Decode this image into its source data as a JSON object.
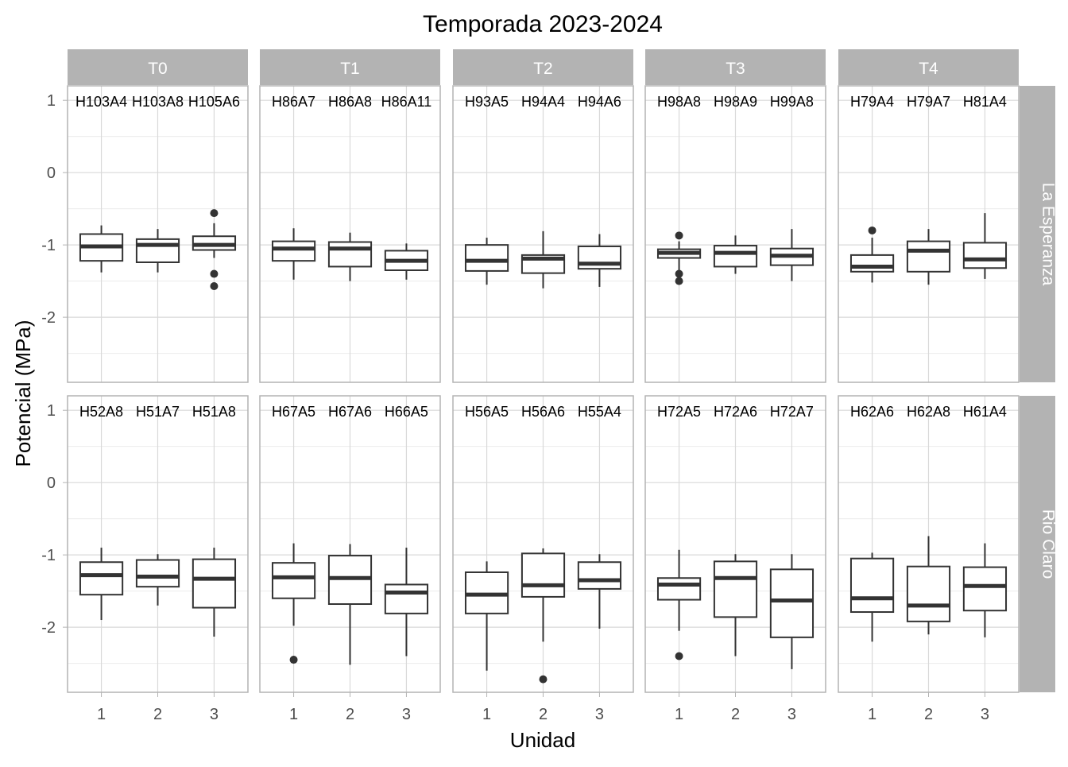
{
  "chart_data": {
    "type": "boxplot",
    "title": "Temporada 2023-2024",
    "xlabel": "Unidad",
    "ylabel": "Potencial (MPa)",
    "ylim": [
      -2.9,
      1.2
    ],
    "y_ticks": [
      1,
      0,
      -1,
      -2
    ],
    "x_ticks": [
      "1",
      "2",
      "3"
    ],
    "grid": true,
    "colors": {
      "strip_fill": "#b3b3b3",
      "strip_text": "#ffffff",
      "panel_border": "#b3b3b3",
      "grid_major": "#d9d9d9",
      "grid_minor": "#ececec",
      "box_line": "#333333",
      "text": "#000000",
      "tick_label": "#4d4d4d"
    },
    "columns": [
      "T0",
      "T1",
      "T2",
      "T3",
      "T4"
    ],
    "rows": [
      "La Esperanza",
      "Rio Claro"
    ],
    "panels": [
      {
        "row": "La Esperanza",
        "col": "T0",
        "labels": [
          "H103A4",
          "H103A8",
          "H105A6"
        ],
        "boxes": [
          {
            "x": 1,
            "whisker_low": -1.38,
            "q1": -1.22,
            "median": -1.02,
            "q3": -0.85,
            "whisker_high": -0.73,
            "outliers": []
          },
          {
            "x": 2,
            "whisker_low": -1.38,
            "q1": -1.24,
            "median": -1.0,
            "q3": -0.92,
            "whisker_high": -0.78,
            "outliers": []
          },
          {
            "x": 3,
            "whisker_low": -1.18,
            "q1": -1.07,
            "median": -1.0,
            "q3": -0.88,
            "whisker_high": -0.7,
            "outliers": [
              -0.56,
              -1.4,
              -1.57
            ]
          }
        ]
      },
      {
        "row": "La Esperanza",
        "col": "T1",
        "labels": [
          "H86A7",
          "H86A8",
          "H86A11"
        ],
        "boxes": [
          {
            "x": 1,
            "whisker_low": -1.48,
            "q1": -1.22,
            "median": -1.05,
            "q3": -0.95,
            "whisker_high": -0.77,
            "outliers": []
          },
          {
            "x": 2,
            "whisker_low": -1.5,
            "q1": -1.3,
            "median": -1.05,
            "q3": -0.96,
            "whisker_high": -0.83,
            "outliers": []
          },
          {
            "x": 3,
            "whisker_low": -1.48,
            "q1": -1.35,
            "median": -1.22,
            "q3": -1.08,
            "whisker_high": -0.98,
            "outliers": []
          }
        ]
      },
      {
        "row": "La Esperanza",
        "col": "T2",
        "labels": [
          "H93A5",
          "H94A4",
          "H94A6"
        ],
        "boxes": [
          {
            "x": 1,
            "whisker_low": -1.55,
            "q1": -1.36,
            "median": -1.22,
            "q3": -1.0,
            "whisker_high": -0.9,
            "outliers": []
          },
          {
            "x": 2,
            "whisker_low": -1.6,
            "q1": -1.39,
            "median": -1.19,
            "q3": -1.14,
            "whisker_high": -0.81,
            "outliers": []
          },
          {
            "x": 3,
            "whisker_low": -1.58,
            "q1": -1.33,
            "median": -1.26,
            "q3": -1.02,
            "whisker_high": -0.85,
            "outliers": []
          }
        ]
      },
      {
        "row": "La Esperanza",
        "col": "T3",
        "labels": [
          "H98A8",
          "H98A9",
          "H99A8"
        ],
        "boxes": [
          {
            "x": 1,
            "whisker_low": -1.38,
            "q1": -1.18,
            "median": -1.11,
            "q3": -1.06,
            "whisker_high": -0.95,
            "outliers": [
              -0.87,
              -1.4,
              -1.5
            ]
          },
          {
            "x": 2,
            "whisker_low": -1.4,
            "q1": -1.3,
            "median": -1.11,
            "q3": -1.01,
            "whisker_high": -0.87,
            "outliers": []
          },
          {
            "x": 3,
            "whisker_low": -1.5,
            "q1": -1.28,
            "median": -1.15,
            "q3": -1.05,
            "whisker_high": -0.78,
            "outliers": []
          }
        ]
      },
      {
        "row": "La Esperanza",
        "col": "T4",
        "labels": [
          "H79A4",
          "H79A7",
          "H81A4"
        ],
        "boxes": [
          {
            "x": 1,
            "whisker_low": -1.52,
            "q1": -1.37,
            "median": -1.3,
            "q3": -1.14,
            "whisker_high": -0.9,
            "outliers": [
              -0.8
            ]
          },
          {
            "x": 2,
            "whisker_low": -1.55,
            "q1": -1.37,
            "median": -1.08,
            "q3": -0.95,
            "whisker_high": -0.78,
            "outliers": []
          },
          {
            "x": 3,
            "whisker_low": -1.47,
            "q1": -1.32,
            "median": -1.2,
            "q3": -0.97,
            "whisker_high": -0.56,
            "outliers": []
          }
        ]
      },
      {
        "row": "Rio Claro",
        "col": "T0",
        "labels": [
          "H52A8",
          "H51A7",
          "H51A8"
        ],
        "boxes": [
          {
            "x": 1,
            "whisker_low": -1.9,
            "q1": -1.55,
            "median": -1.28,
            "q3": -1.1,
            "whisker_high": -0.9,
            "outliers": []
          },
          {
            "x": 2,
            "whisker_low": -1.7,
            "q1": -1.44,
            "median": -1.3,
            "q3": -1.07,
            "whisker_high": -0.99,
            "outliers": []
          },
          {
            "x": 3,
            "whisker_low": -2.13,
            "q1": -1.73,
            "median": -1.33,
            "q3": -1.06,
            "whisker_high": -0.9,
            "outliers": []
          }
        ]
      },
      {
        "row": "Rio Claro",
        "col": "T1",
        "labels": [
          "H67A5",
          "H67A6",
          "H66A5"
        ],
        "boxes": [
          {
            "x": 1,
            "whisker_low": -1.98,
            "q1": -1.6,
            "median": -1.31,
            "q3": -1.11,
            "whisker_high": -0.84,
            "outliers": [
              -2.45
            ]
          },
          {
            "x": 2,
            "whisker_low": -2.52,
            "q1": -1.68,
            "median": -1.32,
            "q3": -1.01,
            "whisker_high": -0.85,
            "outliers": []
          },
          {
            "x": 3,
            "whisker_low": -2.4,
            "q1": -1.81,
            "median": -1.52,
            "q3": -1.41,
            "whisker_high": -0.9,
            "outliers": []
          }
        ]
      },
      {
        "row": "Rio Claro",
        "col": "T2",
        "labels": [
          "H56A5",
          "H56A6",
          "H55A4"
        ],
        "boxes": [
          {
            "x": 1,
            "whisker_low": -2.6,
            "q1": -1.81,
            "median": -1.55,
            "q3": -1.24,
            "whisker_high": -1.09,
            "outliers": []
          },
          {
            "x": 2,
            "whisker_low": -2.2,
            "q1": -1.58,
            "median": -1.42,
            "q3": -0.98,
            "whisker_high": -0.91,
            "outliers": [
              -2.72
            ]
          },
          {
            "x": 3,
            "whisker_low": -2.02,
            "q1": -1.47,
            "median": -1.35,
            "q3": -1.1,
            "whisker_high": -0.99,
            "outliers": []
          }
        ]
      },
      {
        "row": "Rio Claro",
        "col": "T3",
        "labels": [
          "H72A5",
          "H72A6",
          "H72A7"
        ],
        "boxes": [
          {
            "x": 1,
            "whisker_low": -2.05,
            "q1": -1.62,
            "median": -1.41,
            "q3": -1.32,
            "whisker_high": -0.93,
            "outliers": [
              -2.4
            ]
          },
          {
            "x": 2,
            "whisker_low": -2.4,
            "q1": -1.86,
            "median": -1.32,
            "q3": -1.09,
            "whisker_high": -0.99,
            "outliers": []
          },
          {
            "x": 3,
            "whisker_low": -2.58,
            "q1": -2.14,
            "median": -1.63,
            "q3": -1.2,
            "whisker_high": -0.99,
            "outliers": []
          }
        ]
      },
      {
        "row": "Rio Claro",
        "col": "T4",
        "labels": [
          "H62A6",
          "H62A8",
          "H61A4"
        ],
        "boxes": [
          {
            "x": 1,
            "whisker_low": -2.2,
            "q1": -1.79,
            "median": -1.6,
            "q3": -1.05,
            "whisker_high": -0.97,
            "outliers": []
          },
          {
            "x": 2,
            "whisker_low": -2.1,
            "q1": -1.92,
            "median": -1.7,
            "q3": -1.16,
            "whisker_high": -0.74,
            "outliers": []
          },
          {
            "x": 3,
            "whisker_low": -2.14,
            "q1": -1.77,
            "median": -1.43,
            "q3": -1.17,
            "whisker_high": -0.84,
            "outliers": []
          }
        ]
      }
    ]
  }
}
